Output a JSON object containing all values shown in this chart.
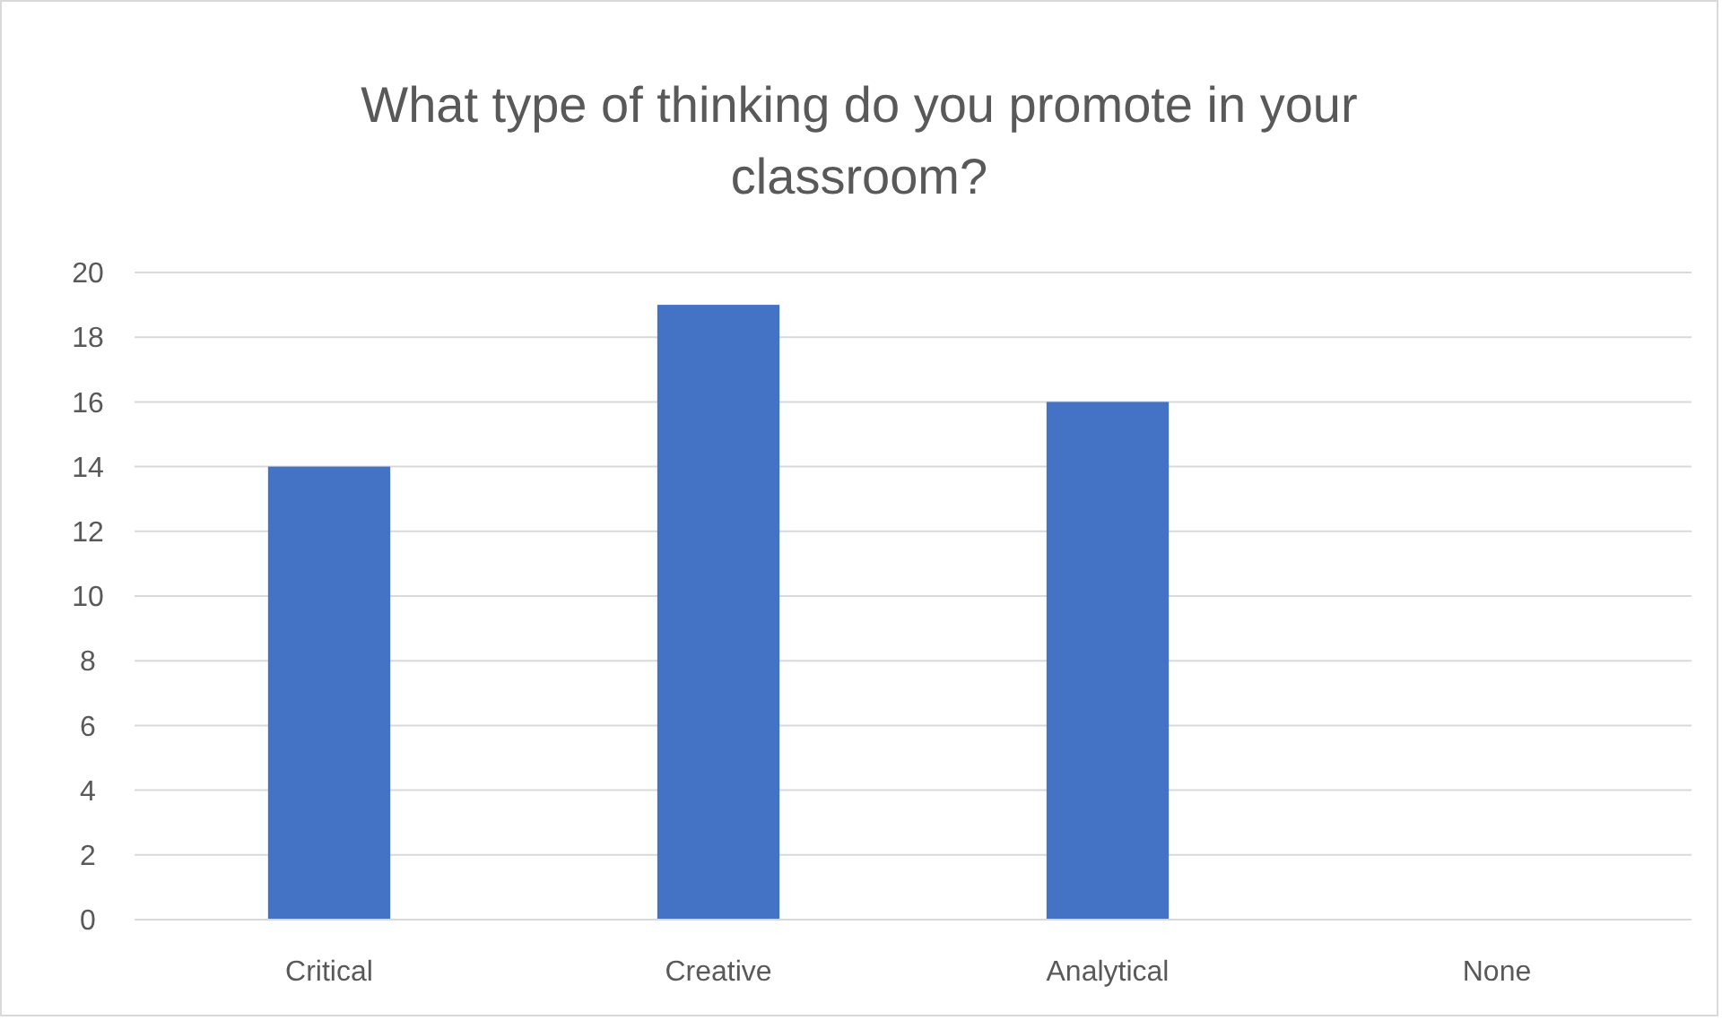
{
  "chart_data": {
    "type": "bar",
    "title": "What type of thinking do you promote in your classroom?",
    "categories": [
      "Critical",
      "Creative",
      "Analytical",
      "None"
    ],
    "values": [
      14,
      19,
      16,
      0
    ],
    "color": "#4472c4",
    "ylim": [
      0,
      20
    ],
    "yticks": [
      0,
      2,
      4,
      6,
      8,
      10,
      12,
      14,
      16,
      18,
      20
    ],
    "grid": "y"
  }
}
